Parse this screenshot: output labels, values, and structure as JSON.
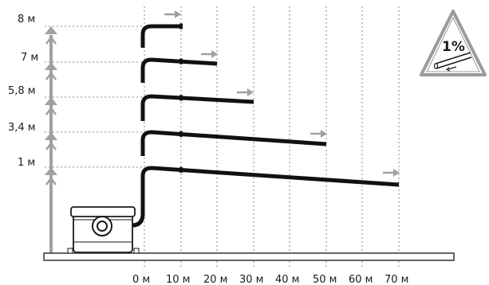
{
  "height_labels": [
    "8 м",
    "7 м",
    "5,8 м",
    "3,4 м",
    "1 м"
  ],
  "distance_labels": [
    "0 м",
    "10 м",
    "20 м",
    "30 м",
    "40 м",
    "50 м",
    "60 м",
    "70 м"
  ],
  "slope_badge": "1%",
  "colors": {
    "pipe": "#111111",
    "arrow": "#a0a0a0",
    "grid": "#8a8a8a",
    "ground": "#333333"
  }
}
